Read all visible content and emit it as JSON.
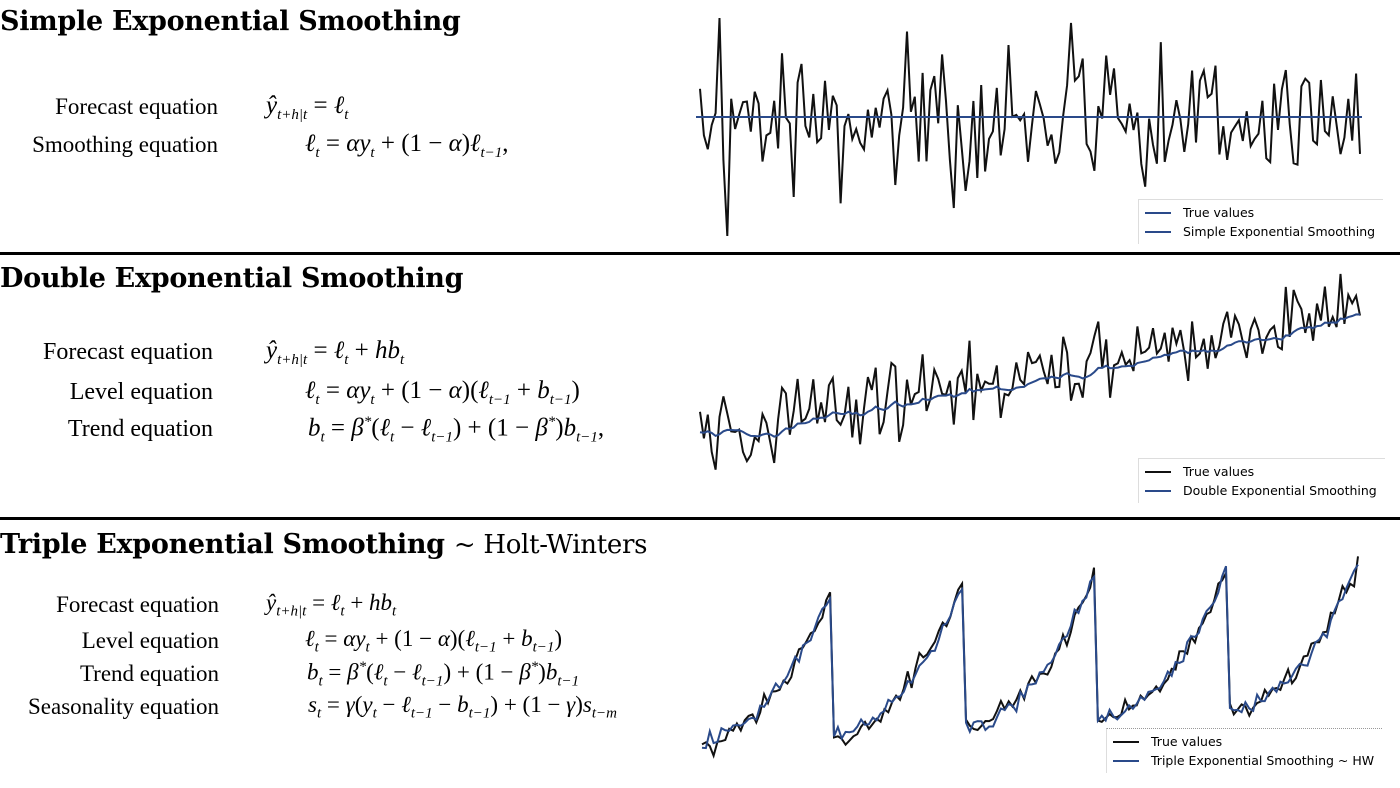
{
  "sections": [
    {
      "title": "Simple Exponential Smoothing",
      "subtitle": "",
      "equations": [
        {
          "label": "Forecast equation",
          "formula": "ŷ_{t+h|t} = ℓ_t"
        },
        {
          "label": "Smoothing equation",
          "formula": "ℓ_t = αy_t + (1 − α)ℓ_{t−1},"
        }
      ],
      "legend": [
        "True values",
        "Simple Exponential Smoothing"
      ]
    },
    {
      "title": "Double Exponential Smoothing",
      "subtitle": "",
      "equations": [
        {
          "label": "Forecast equation",
          "formula": "ŷ_{t+h|t} = ℓ_t + hb_t"
        },
        {
          "label": "Level equation",
          "formula": "ℓ_t = αy_t + (1 − α)(ℓ_{t−1} + b_{t−1})"
        },
        {
          "label": "Trend equation",
          "formula": "b_t = β*(ℓ_t − ℓ_{t−1}) + (1 − β*)b_{t−1},"
        }
      ],
      "legend": [
        "True values",
        "Double Exponential Smoothing"
      ]
    },
    {
      "title": "Triple Exponential Smoothing",
      "subtitle": "~ Holt-Winters",
      "equations": [
        {
          "label": "Forecast equation",
          "formula": "ŷ_{t+h|t} = ℓ_t + hb_t"
        },
        {
          "label": "Level equation",
          "formula": "ℓ_t = αy_t + (1 − α)(ℓ_{t−1} + b_{t−1})"
        },
        {
          "label": "Trend equation",
          "formula": "b_t = β*(ℓ_t − ℓ_{t−1}) + (1 − β*)b_{t−1}"
        },
        {
          "label": "Seasonality equation",
          "formula": "s_t = γ(y_t − ℓ_{t−1} − b_{t−1}) + (1 − γ)s_{t−m}"
        }
      ],
      "legend": [
        "True values",
        "Triple Exponential Smoothing ~ HW"
      ]
    }
  ],
  "colors": {
    "true_values": "#111111",
    "smoothing": "#2a4a8a"
  },
  "chart_data": [
    {
      "type": "line",
      "series": [
        {
          "name": "True values"
        },
        {
          "name": "Simple Exponential Smoothing"
        }
      ],
      "pattern": "stationary noise around a constant level"
    },
    {
      "type": "line",
      "series": [
        {
          "name": "True values"
        },
        {
          "name": "Double Exponential Smoothing"
        }
      ],
      "pattern": "noisy upward trend"
    },
    {
      "type": "line",
      "series": [
        {
          "name": "True values"
        },
        {
          "name": "Triple Exponential Smoothing ~ HW"
        }
      ],
      "pattern": "upward trend with repeating sawtooth seasonality"
    }
  ]
}
